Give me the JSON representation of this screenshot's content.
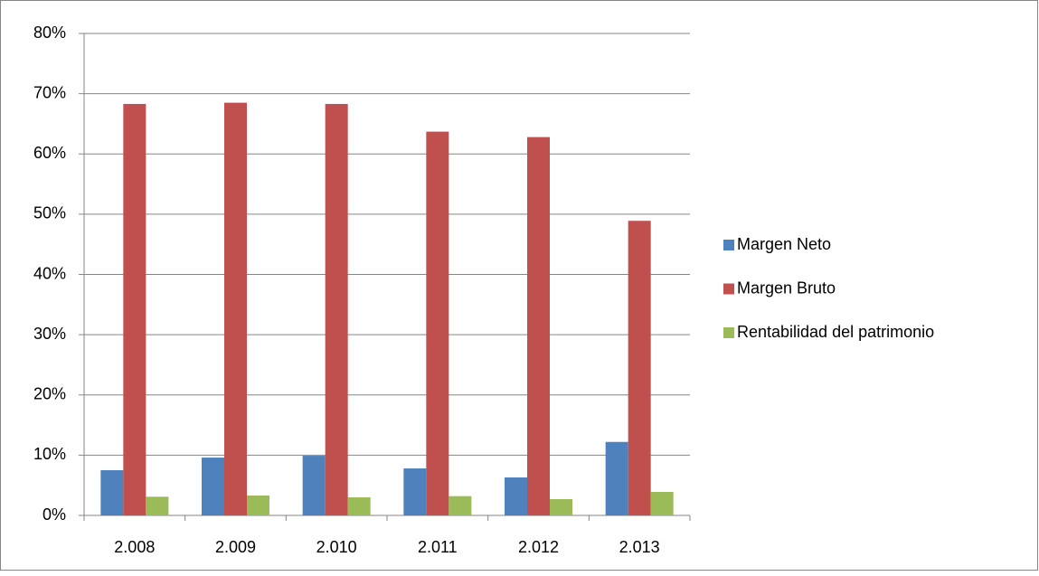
{
  "chart_data": {
    "type": "bar",
    "categories": [
      "2.008",
      "2.009",
      "2.010",
      "2.011",
      "2.012",
      "2.013"
    ],
    "series": [
      {
        "name": "Margen Neto",
        "color": "#4f81bd",
        "values": [
          7.5,
          9.6,
          9.9,
          7.8,
          6.3,
          12.2
        ]
      },
      {
        "name": "Margen Bruto",
        "color": "#c0504d",
        "values": [
          68.3,
          68.5,
          68.3,
          63.7,
          62.8,
          48.9
        ]
      },
      {
        "name": "Rentabilidad del patrimonio",
        "color": "#9bbb59",
        "values": [
          3.1,
          3.3,
          3.0,
          3.2,
          2.7,
          3.9
        ]
      }
    ],
    "ylim": [
      0,
      80
    ],
    "yticks": [
      {
        "value": 0,
        "label": "0%"
      },
      {
        "value": 10,
        "label": "10%"
      },
      {
        "value": 20,
        "label": "20%"
      },
      {
        "value": 30,
        "label": "30%"
      },
      {
        "value": 40,
        "label": "40%"
      },
      {
        "value": 50,
        "label": "50%"
      },
      {
        "value": 60,
        "label": "60%"
      },
      {
        "value": 70,
        "label": "70%"
      },
      {
        "value": 80,
        "label": "80%"
      }
    ],
    "grid": true,
    "legend": "right"
  }
}
